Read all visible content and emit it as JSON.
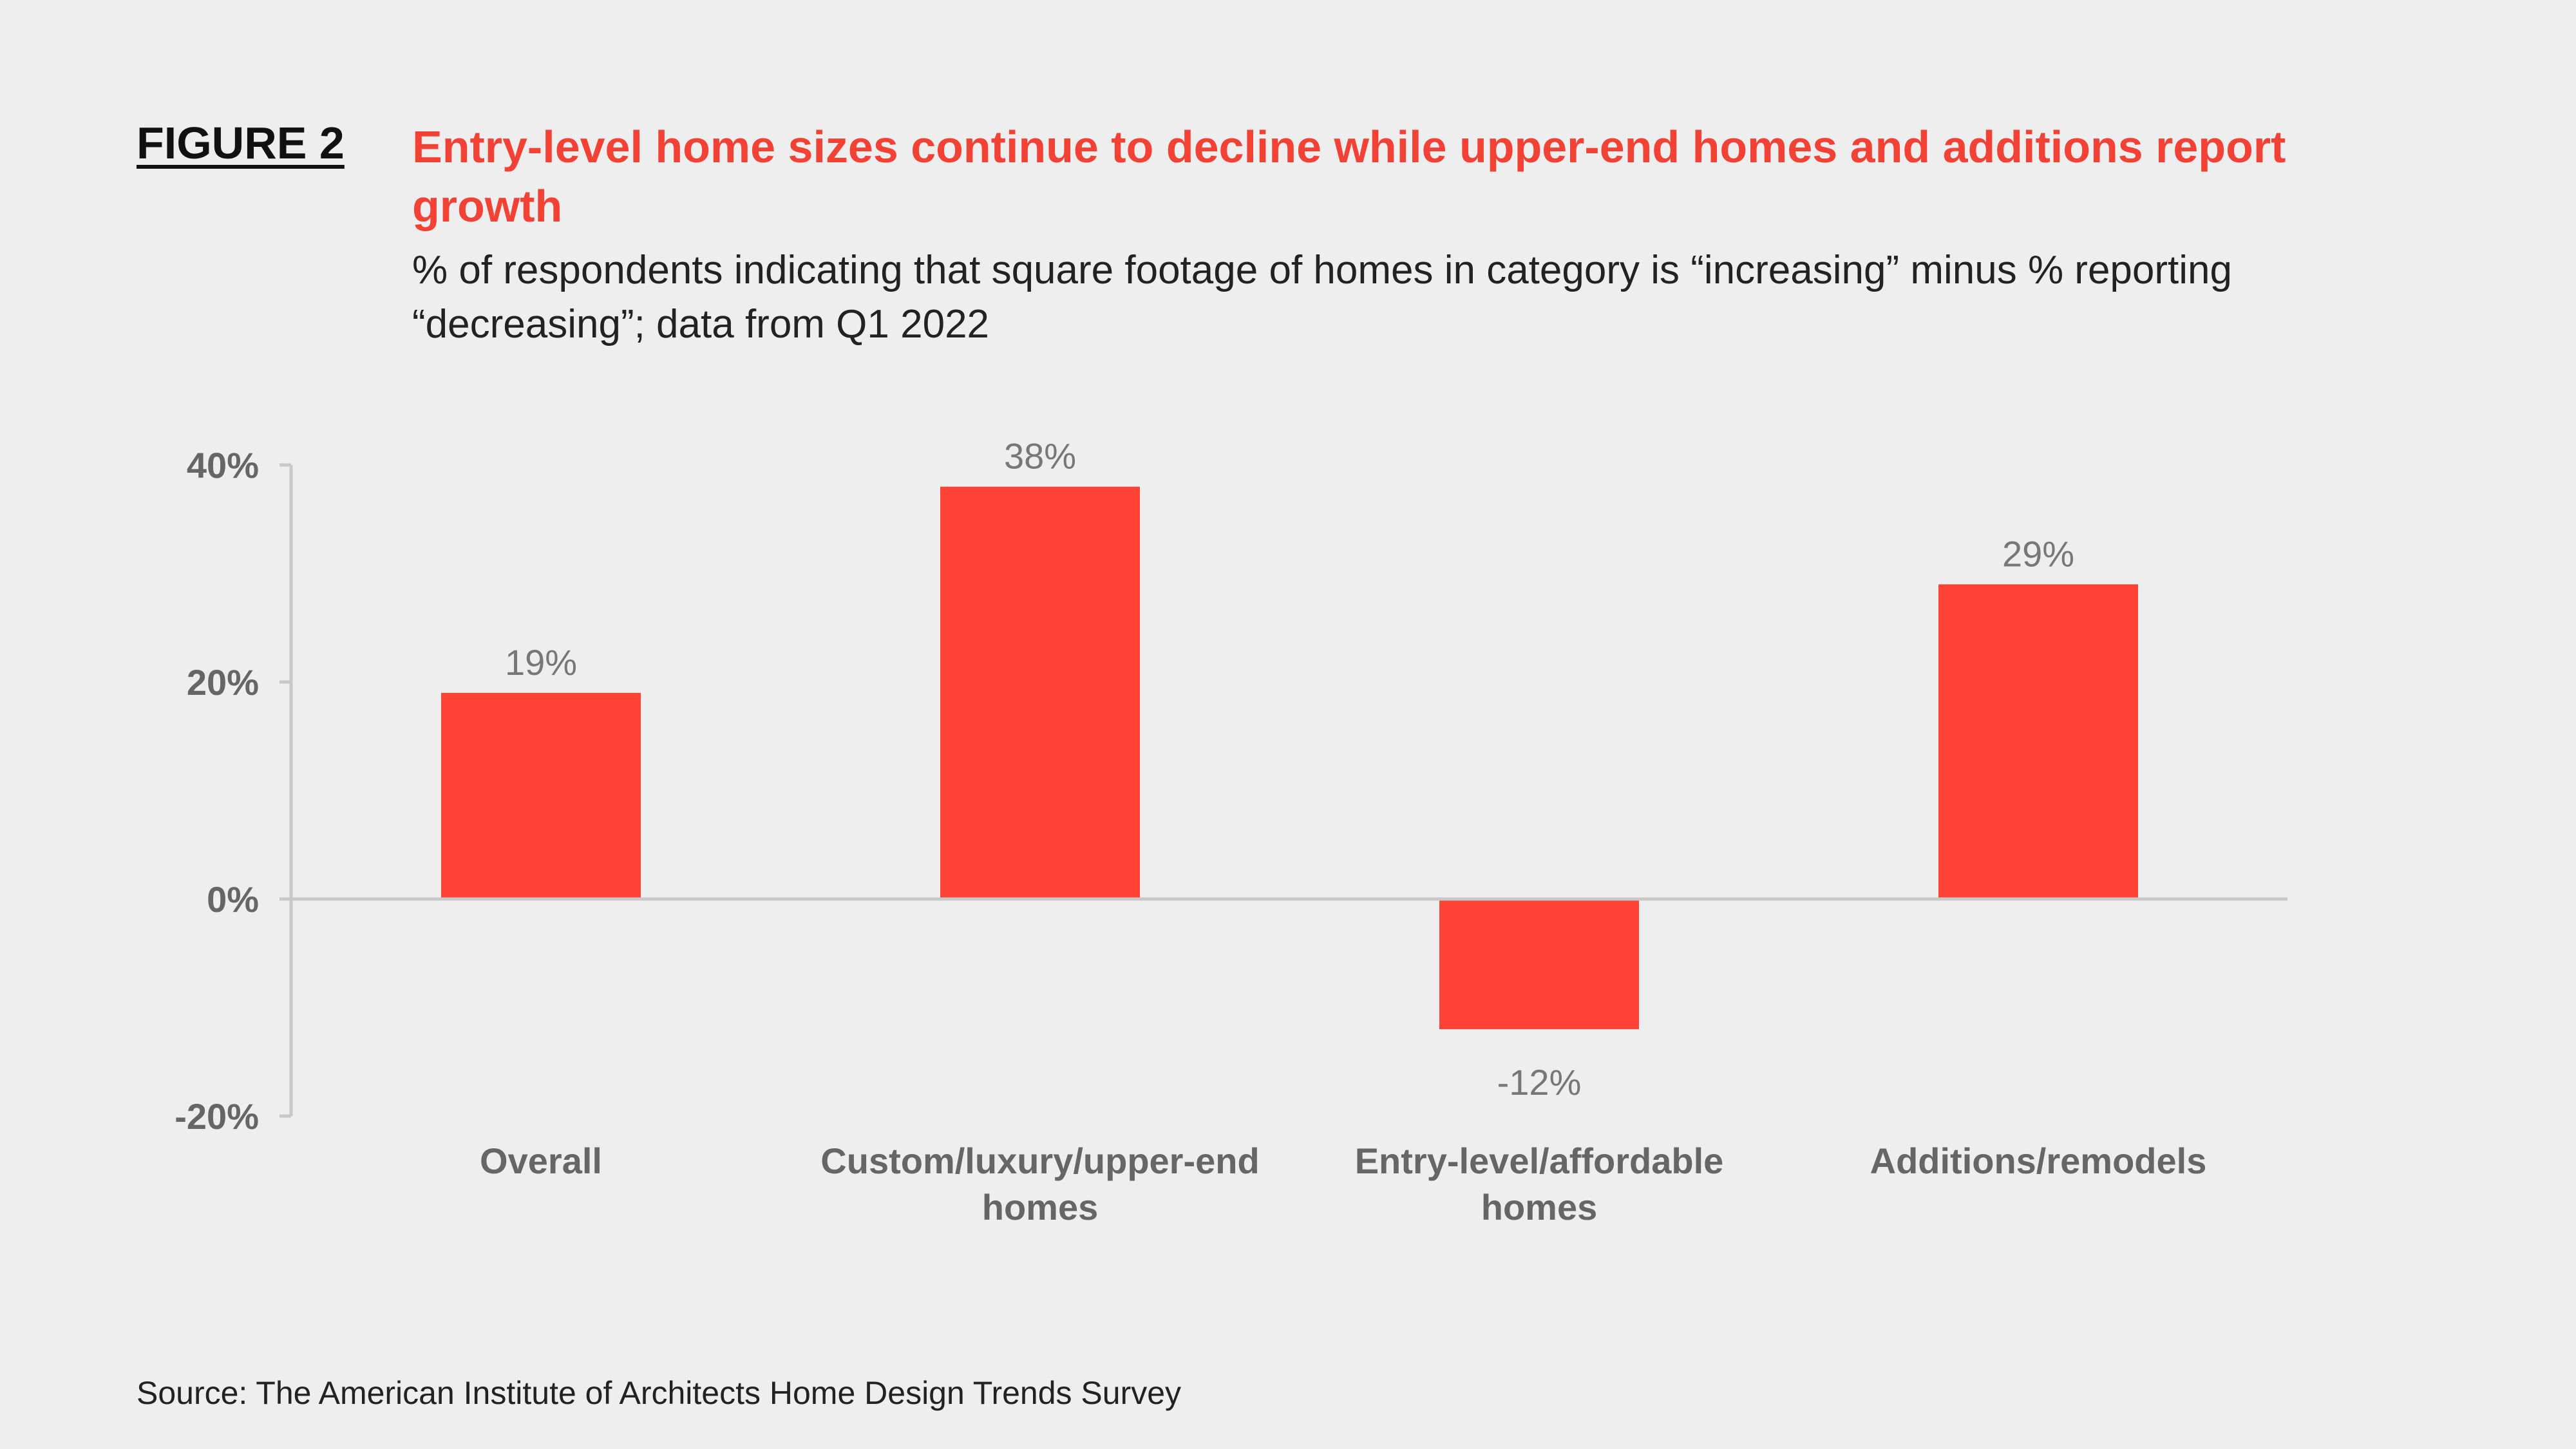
{
  "figure_label": "FIGURE 2",
  "title": "Entry-level home sizes continue to decline while upper-end homes and additions report growth",
  "subtitle": "% of respondents indicating that square footage of homes in category is “increasing” minus % reporting “decreasing”; data from Q1 2022",
  "source": "Source: The American Institute of Architects Home Design Trends Survey",
  "chart_data": {
    "type": "bar",
    "categories": [
      [
        "Overall"
      ],
      [
        "Custom/luxury/upper-end",
        "homes"
      ],
      [
        "Entry-level/affordable",
        "homes"
      ],
      [
        "Additions/remodels"
      ]
    ],
    "values": [
      19,
      38,
      -12,
      29
    ],
    "data_labels": [
      "19%",
      "38%",
      "-12%",
      "29%"
    ],
    "yticks": [
      40,
      20,
      0,
      -20
    ],
    "ytick_labels": [
      "40%",
      "20%",
      "0%",
      "-20%"
    ],
    "ylim": [
      -20,
      40
    ],
    "grid": false,
    "bar_color": "#fe4236",
    "axis_color": "#c8c8c8"
  }
}
